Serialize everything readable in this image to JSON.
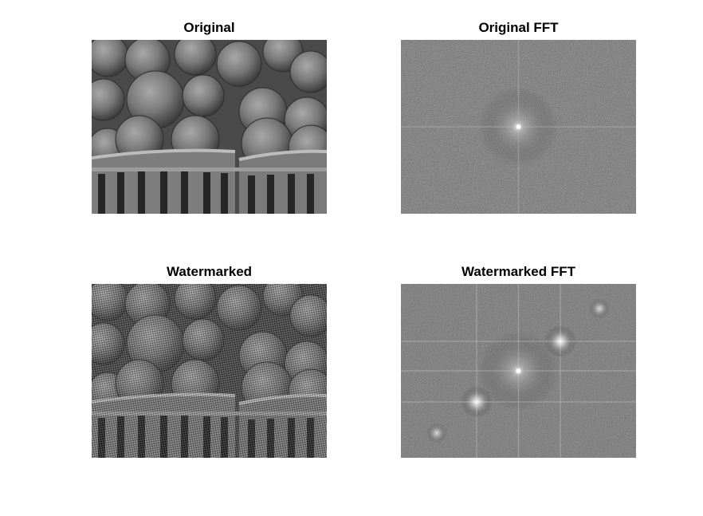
{
  "figure": {
    "panels": [
      {
        "title": "Original"
      },
      {
        "title": "Original FFT"
      },
      {
        "title": "Watermarked"
      },
      {
        "title": "Watermarked FFT"
      }
    ]
  }
}
